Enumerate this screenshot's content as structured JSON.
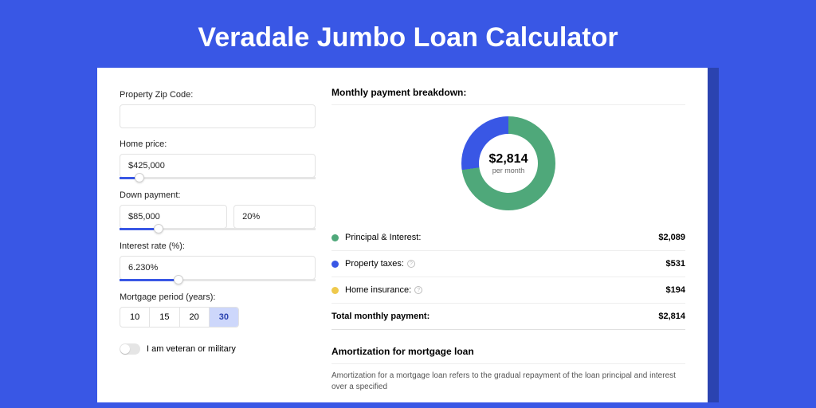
{
  "title": "Veradale Jumbo Loan Calculator",
  "colors": {
    "page_bg": "#3957e5",
    "card_border": "#2b43b0",
    "slider_track": "#e6e6e6",
    "slider_fill": "#3957e5",
    "period_active_bg": "#cdd7fb",
    "period_active_text": "#2b43b0"
  },
  "form": {
    "zip": {
      "label": "Property Zip Code:",
      "value": ""
    },
    "home_price": {
      "label": "Home price:",
      "value": "$425,000",
      "slider_pos_pct": 10
    },
    "down_payment": {
      "label": "Down payment:",
      "value": "$85,000",
      "pct_value": "20%",
      "slider_pos_pct": 20
    },
    "interest": {
      "label": "Interest rate (%):",
      "value": "6.230%",
      "slider_pos_pct": 30
    },
    "period": {
      "label": "Mortgage period (years):",
      "options": [
        "10",
        "15",
        "20",
        "30"
      ],
      "active": "30"
    },
    "veteran": {
      "label": "I am veteran or military",
      "on": false
    }
  },
  "breakdown": {
    "heading": "Monthly payment breakdown:",
    "donut": {
      "center_value": "$2,814",
      "center_sub": "per month",
      "slices": [
        {
          "label": "Principal & Interest:",
          "value": "$2,089",
          "color": "#4fa87a",
          "pct": 74.2
        },
        {
          "label": "Property taxes:",
          "value": "$531",
          "color": "#3957e5",
          "pct": 18.9,
          "info": true
        },
        {
          "label": "Home insurance:",
          "value": "$194",
          "color": "#efc94c",
          "pct": 6.9,
          "info": true
        }
      ]
    },
    "total": {
      "label": "Total monthly payment:",
      "value": "$2,814"
    }
  },
  "amortization": {
    "heading": "Amortization for mortgage loan",
    "text": "Amortization for a mortgage loan refers to the gradual repayment of the loan principal and interest over a specified"
  }
}
